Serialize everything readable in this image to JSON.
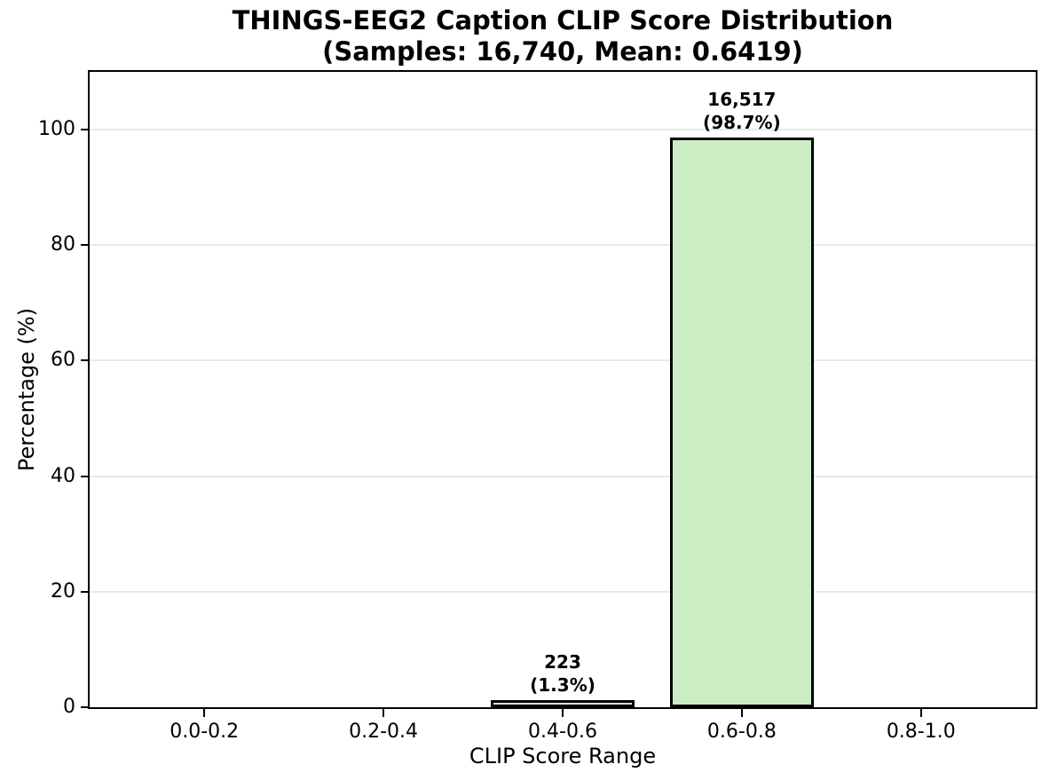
{
  "chart_data": {
    "type": "bar",
    "title": "THINGS-EEG2 Caption CLIP Score Distribution",
    "subtitle": "(Samples: 16,740, Mean: 0.6419)",
    "samples_total": "16,740",
    "mean_clip_score": "0.6419",
    "xlabel": "CLIP Score Range",
    "ylabel": "Percentage (%)",
    "categories": [
      "0.0-0.2",
      "0.2-0.4",
      "0.4-0.6",
      "0.6-0.8",
      "0.8-1.0"
    ],
    "values": [
      0,
      0,
      1.3,
      98.7,
      0
    ],
    "counts": [
      0,
      0,
      223,
      16517,
      0
    ],
    "bar_labels": [
      null,
      null,
      [
        "223",
        "(1.3%)"
      ],
      [
        "16,517",
        "(98.7%)"
      ],
      null
    ],
    "bar_colors": [
      null,
      null,
      "#dcdaec",
      "#ccedc3",
      null
    ],
    "edge_color": "#000000",
    "yticks": [
      0,
      20,
      40,
      60,
      80,
      100
    ],
    "ylim": [
      0,
      110
    ],
    "grid": "horizontal-only",
    "grid_color": "#e9e9e9",
    "legend": "none",
    "background": "#ffffff",
    "text_color": "#000000"
  }
}
